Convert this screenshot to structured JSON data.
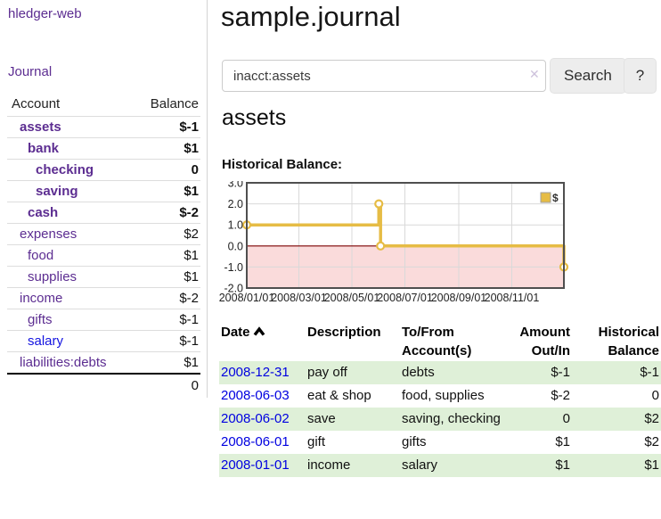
{
  "colors": {
    "link_purple": "#5c2d91",
    "link_blue": "#1414e0",
    "negative_strong": "#9c1b1b",
    "negative_faded": "#c9807e",
    "row_stripe_green": "#dff0d8",
    "date_link_blue": "#0000e0",
    "chart_line_gold": "#e6bc45"
  },
  "app": {
    "brand": "hledger-web",
    "nav_journal": "Journal"
  },
  "sidebar": {
    "header": {
      "account": "Account",
      "balance": "Balance"
    },
    "accounts": [
      {
        "name": "assets",
        "balance": "$-1",
        "indent": 1,
        "bold": true,
        "tone": "neg"
      },
      {
        "name": "bank",
        "balance": "$1",
        "indent": 2,
        "bold": true,
        "tone": null
      },
      {
        "name": "checking",
        "balance": "0",
        "indent": 3,
        "bold": true,
        "tone": null
      },
      {
        "name": "saving",
        "balance": "$1",
        "indent": 3,
        "bold": true,
        "tone": null
      },
      {
        "name": "cash",
        "balance": "$-2",
        "indent": 2,
        "bold": true,
        "tone": "neg"
      },
      {
        "name": "expenses",
        "balance": "$2",
        "indent": 1,
        "bold": false,
        "tone": null
      },
      {
        "name": "food",
        "balance": "$1",
        "indent": 2,
        "bold": false,
        "tone": null
      },
      {
        "name": "supplies",
        "balance": "$1",
        "indent": 2,
        "bold": false,
        "tone": null
      },
      {
        "name": "income",
        "balance": "$-2",
        "indent": 1,
        "bold": false,
        "tone": "negfade"
      },
      {
        "name": "gifts",
        "balance": "$-1",
        "indent": 2,
        "bold": false,
        "tone": "negfade"
      },
      {
        "name": "salary",
        "balance": "$-1",
        "indent": 2,
        "bold": false,
        "tone": "negfade",
        "link": "blue"
      },
      {
        "name": "liabilities:debts",
        "balance": "$1",
        "indent": 1,
        "bold": false,
        "tone": null
      }
    ],
    "total": "0"
  },
  "header": {
    "title": "sample.journal"
  },
  "search": {
    "value": "inacct:assets",
    "clear_icon": "✕",
    "button_label": "Search",
    "help_label": "?"
  },
  "main": {
    "account_title": "assets"
  },
  "chart_data": {
    "type": "step-line",
    "title": "Historical Balance:",
    "series": [
      {
        "name": "$",
        "color": "#e6bc45",
        "points": [
          [
            "2008-01-01",
            1.0
          ],
          [
            "2008-06-01",
            2.0
          ],
          [
            "2008-06-03",
            0.0
          ],
          [
            "2008-12-31",
            -1.0
          ]
        ]
      }
    ],
    "x_range": [
      "2008-01-01",
      "2008-12-31"
    ],
    "x_ticks": [
      "2008/01/01",
      "2008/03/01",
      "2008/05/01",
      "2008/07/01",
      "2008/09/01",
      "2008/11/01"
    ],
    "y_ticks": [
      "3.0",
      "2.0",
      "1.0",
      "0.0",
      "-1.0",
      "-2.0"
    ],
    "ylim": [
      -2.0,
      3.0
    ],
    "grid": true,
    "legend": {
      "label": "$",
      "position": "top-right"
    },
    "negative_region_color": "#fadbdb",
    "zero_line_color": "#7d0000"
  },
  "register": {
    "columns": {
      "date": "Date",
      "description": "Description",
      "accounts": "To/From Account(s)",
      "amount": "Amount Out/In",
      "balance": "Historical Balance"
    },
    "rows": [
      {
        "date": "2008-12-31",
        "description": "pay off",
        "accounts": "debts",
        "amount": "$-1",
        "amount_negative": true,
        "balance": "$-1",
        "balance_negative": true
      },
      {
        "date": "2008-06-03",
        "description": "eat & shop",
        "accounts": "food, supplies",
        "amount": "$-2",
        "amount_negative": true,
        "balance": "0",
        "balance_negative": false
      },
      {
        "date": "2008-06-02",
        "description": "save",
        "accounts": "saving, checking",
        "amount": "0",
        "amount_negative": false,
        "balance": "$2",
        "balance_negative": false
      },
      {
        "date": "2008-06-01",
        "description": "gift",
        "accounts": "gifts",
        "amount": "$1",
        "amount_negative": false,
        "balance": "$2",
        "balance_negative": false
      },
      {
        "date": "2008-01-01",
        "description": "income",
        "accounts": "salary",
        "amount": "$1",
        "amount_negative": false,
        "balance": "$1",
        "balance_negative": false
      }
    ]
  }
}
